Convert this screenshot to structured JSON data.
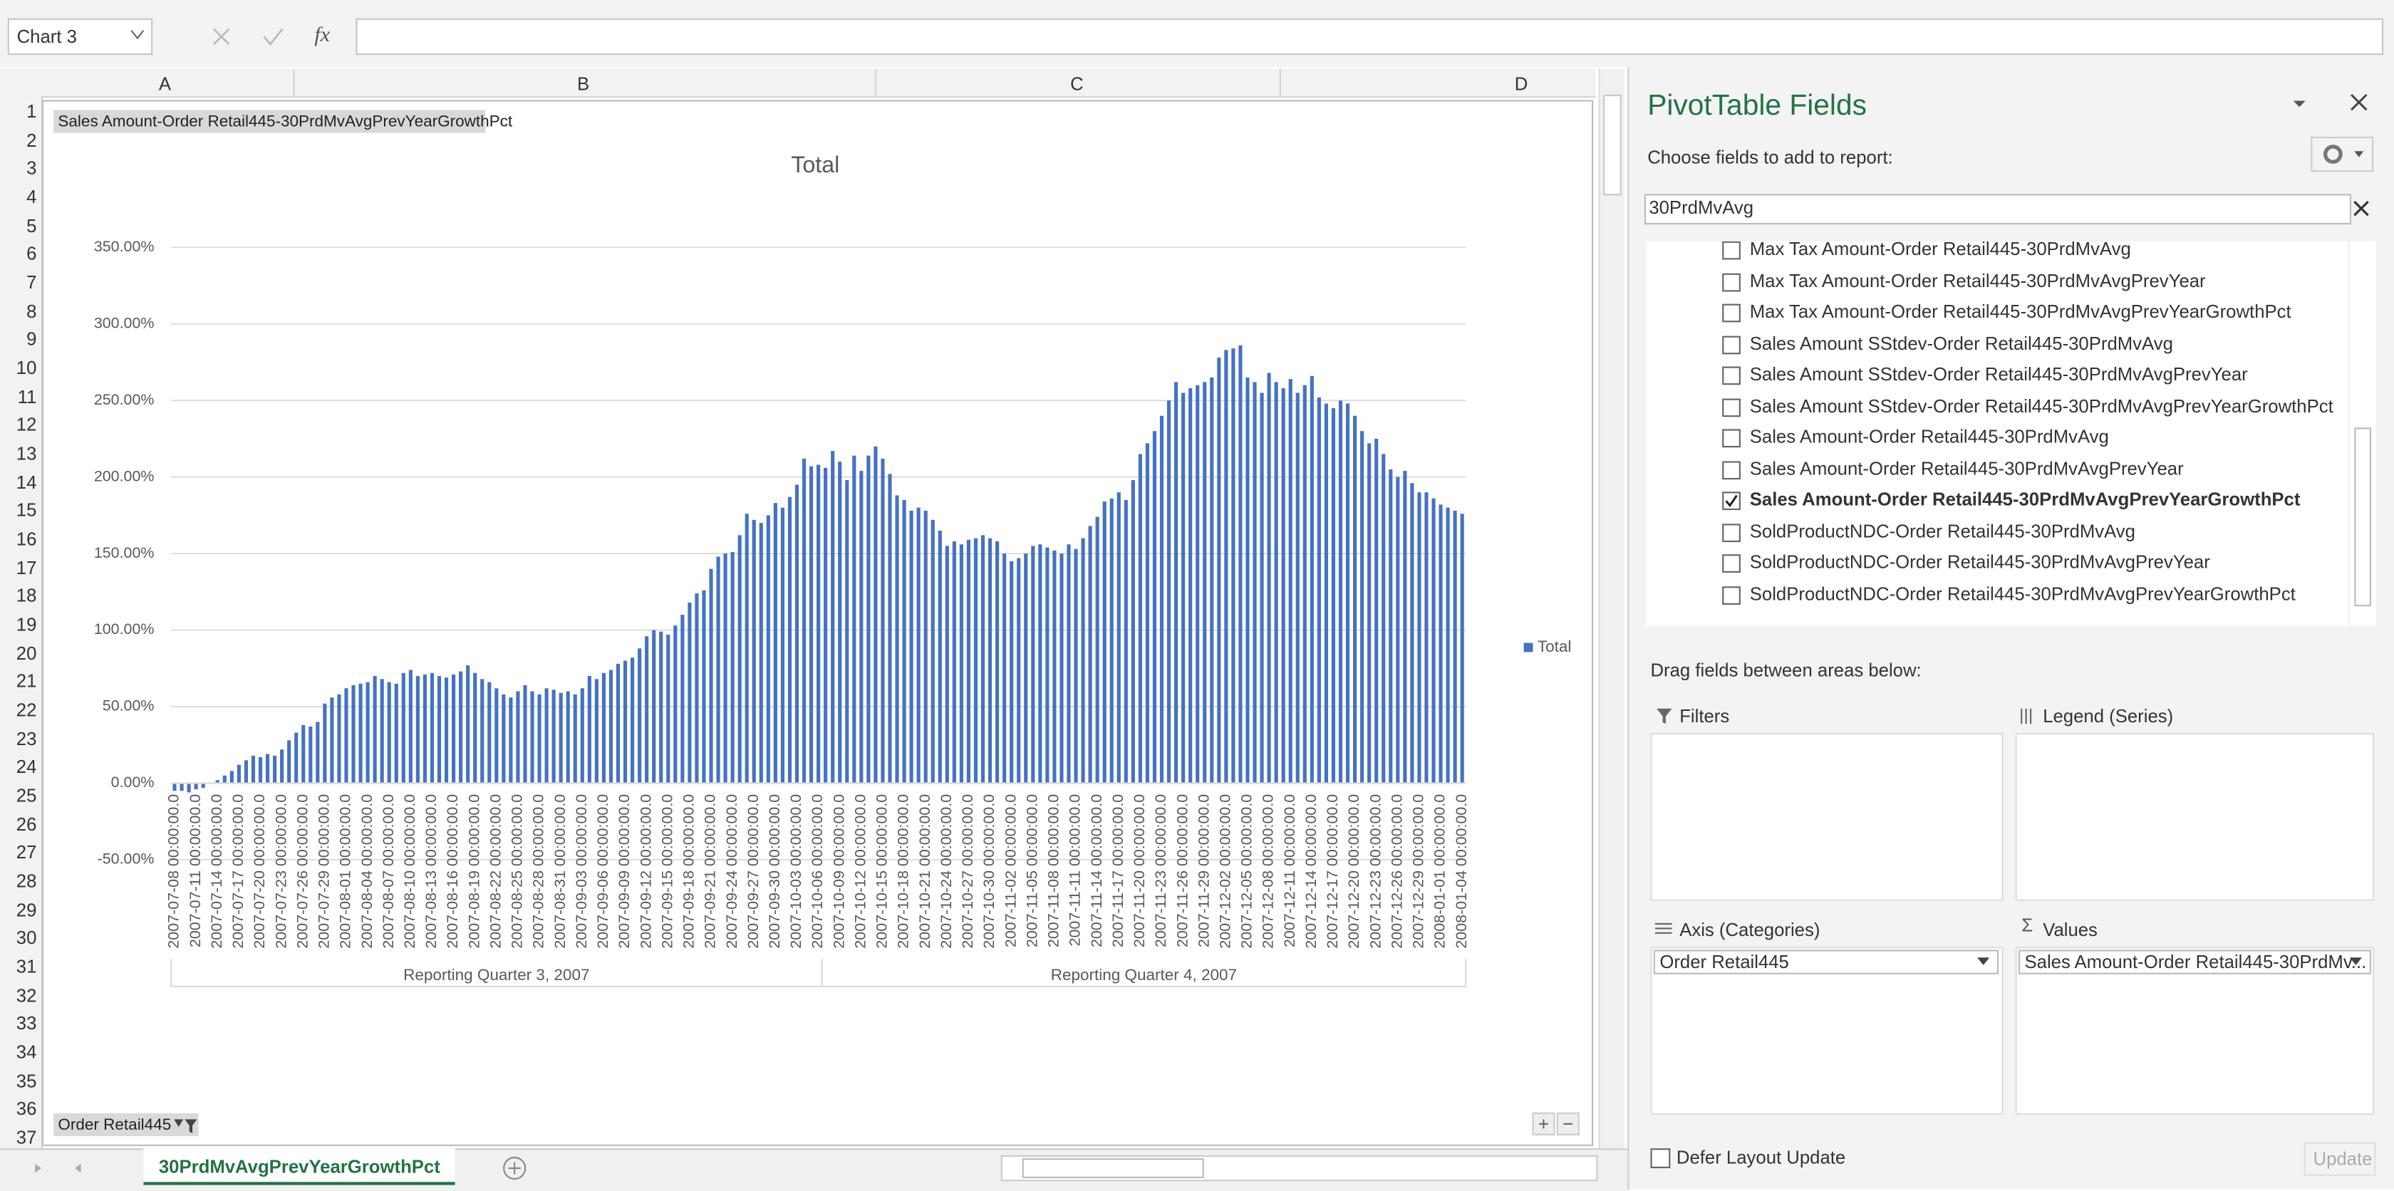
{
  "formula_bar": {
    "name_box": "Chart 3",
    "function_icon": "fx"
  },
  "columns": [
    "A",
    "B",
    "C",
    "D"
  ],
  "rows": [
    1,
    2,
    3,
    4,
    5,
    6,
    7,
    8,
    9,
    10,
    11,
    12,
    13,
    14,
    15,
    16,
    17,
    18,
    19,
    20,
    21,
    22,
    23,
    24,
    25,
    26,
    27,
    28,
    29,
    30,
    31,
    32,
    33,
    34,
    35,
    36,
    37
  ],
  "sheet_tab": "30PrdMvAvgPrevYearGrowthPct",
  "chart_data": {
    "type": "bar",
    "title": "Total",
    "value_field_button": "Sales Amount-Order Retail445-30PrdMvAvgPrevYearGrowthPct",
    "axis_field_button": "Order Retail445",
    "categories": [
      "2007-07-08 00:00:00.0",
      null,
      null,
      "2007-07-11 00:00:00.0",
      null,
      null,
      "2007-07-14 00:00:00.0",
      null,
      null,
      "2007-07-17 00:00:00.0",
      null,
      null,
      "2007-07-20 00:00:00.0",
      null,
      null,
      "2007-07-23 00:00:00.0",
      null,
      null,
      "2007-07-26 00:00:00.0",
      null,
      null,
      "2007-07-29 00:00:00.0",
      null,
      null,
      "2007-08-01 00:00:00.0",
      null,
      null,
      "2007-08-04 00:00:00.0",
      null,
      null,
      "2007-08-07 00:00:00.0",
      null,
      null,
      "2007-08-10 00:00:00.0",
      null,
      null,
      "2007-08-13 00:00:00.0",
      null,
      null,
      "2007-08-16 00:00:00.0",
      null,
      null,
      "2007-08-19 00:00:00.0",
      null,
      null,
      "2007-08-22 00:00:00.0",
      null,
      null,
      "2007-08-25 00:00:00.0",
      null,
      null,
      "2007-08-28 00:00:00.0",
      null,
      null,
      "2007-08-31 00:00:00.0",
      null,
      null,
      "2007-09-03 00:00:00.0",
      null,
      null,
      "2007-09-06 00:00:00.0",
      null,
      null,
      "2007-09-09 00:00:00.0",
      null,
      null,
      "2007-09-12 00:00:00.0",
      null,
      null,
      "2007-09-15 00:00:00.0",
      null,
      null,
      "2007-09-18 00:00:00.0",
      null,
      null,
      "2007-09-21 00:00:00.0",
      null,
      null,
      "2007-09-24 00:00:00.0",
      null,
      null,
      "2007-09-27 00:00:00.0",
      null,
      null,
      "2007-09-30 00:00:00.0",
      null,
      null,
      "2007-10-03 00:00:00.0",
      null,
      null,
      "2007-10-06 00:00:00.0",
      null,
      null,
      "2007-10-09 00:00:00.0",
      null,
      null,
      "2007-10-12 00:00:00.0",
      null,
      null,
      "2007-10-15 00:00:00.0",
      null,
      null,
      "2007-10-18 00:00:00.0",
      null,
      null,
      "2007-10-21 00:00:00.0",
      null,
      null,
      "2007-10-24 00:00:00.0",
      null,
      null,
      "2007-10-27 00:00:00.0",
      null,
      null,
      "2007-10-30 00:00:00.0",
      null,
      null,
      "2007-11-02 00:00:00.0",
      null,
      null,
      "2007-11-05 00:00:00.0",
      null,
      null,
      "2007-11-08 00:00:00.0",
      null,
      null,
      "2007-11-11 00:00:00.0",
      null,
      null,
      "2007-11-14 00:00:00.0",
      null,
      null,
      "2007-11-17 00:00:00.0",
      null,
      null,
      "2007-11-20 00:00:00.0",
      null,
      null,
      "2007-11-23 00:00:00.0",
      null,
      null,
      "2007-11-26 00:00:00.0",
      null,
      null,
      "2007-11-29 00:00:00.0",
      null,
      null,
      "2007-12-02 00:00:00.0",
      null,
      null,
      "2007-12-05 00:00:00.0",
      null,
      null,
      "2007-12-08 00:00:00.0",
      null,
      null,
      "2007-12-11 00:00:00.0",
      null,
      null,
      "2007-12-14 00:00:00.0",
      null,
      null,
      "2007-12-17 00:00:00.0",
      null,
      null,
      "2007-12-20 00:00:00.0",
      null,
      null,
      "2007-12-23 00:00:00.0",
      null,
      null,
      "2007-12-26 00:00:00.0",
      null,
      null,
      "2007-12-29 00:00:00.0",
      null,
      null,
      "2008-01-01 00:00:00.0",
      null,
      null,
      "2008-01-04 00:00:00.0"
    ],
    "category_groups": [
      {
        "name": "Reporting Quarter 3, 2007",
        "count": 91
      },
      {
        "name": "Reporting Quarter 4, 2007",
        "count": 90
      }
    ],
    "series": [
      {
        "name": "Total",
        "color": "#4472c4",
        "values": [
          -5,
          -5,
          -6,
          -4,
          -3,
          0,
          2,
          5,
          8,
          12,
          15,
          18,
          17,
          19,
          18,
          22,
          28,
          33,
          38,
          37,
          40,
          52,
          56,
          58,
          62,
          64,
          65,
          66,
          70,
          68,
          66,
          65,
          72,
          74,
          70,
          71,
          72,
          70,
          69,
          71,
          73,
          77,
          72,
          68,
          66,
          62,
          58,
          56,
          60,
          64,
          60,
          58,
          62,
          61,
          59,
          60,
          58,
          62,
          70,
          68,
          72,
          74,
          78,
          80,
          82,
          88,
          96,
          100,
          99,
          97,
          103,
          110,
          118,
          124,
          126,
          140,
          148,
          150,
          151,
          162,
          176,
          172,
          170,
          175,
          183,
          180,
          187,
          195,
          212,
          207,
          208,
          206,
          217,
          210,
          198,
          214,
          204,
          214,
          220,
          212,
          202,
          188,
          185,
          178,
          180,
          178,
          172,
          165,
          155,
          158,
          156,
          159,
          160,
          162,
          160,
          158,
          150,
          145,
          147,
          150,
          155,
          156,
          154,
          152,
          150,
          156,
          153,
          160,
          168,
          174,
          184,
          186,
          190,
          185,
          198,
          215,
          222,
          230,
          240,
          250,
          262,
          255,
          258,
          260,
          262,
          265,
          278,
          283,
          284,
          286,
          265,
          262,
          255,
          268,
          262,
          258,
          264,
          255,
          260,
          266,
          252,
          248,
          245,
          250,
          248,
          240,
          230,
          222,
          225,
          215,
          205,
          200,
          204,
          196,
          190,
          190,
          186,
          182,
          180,
          178,
          176
        ]
      }
    ],
    "ylim": [
      -50,
      350
    ],
    "yticks": [
      {
        "value": -50,
        "label": "-50.00%"
      },
      {
        "value": 0,
        "label": "0.00%"
      },
      {
        "value": 50,
        "label": "50.00%"
      },
      {
        "value": 100,
        "label": "100.00%"
      },
      {
        "value": 150,
        "label": "150.00%"
      },
      {
        "value": 200,
        "label": "200.00%"
      },
      {
        "value": 250,
        "label": "250.00%"
      },
      {
        "value": 300,
        "label": "300.00%"
      },
      {
        "value": 350,
        "label": "350.00%"
      }
    ],
    "grid": true,
    "legend": "right"
  },
  "pivot_panel": {
    "title": "PivotTable Fields",
    "prompt": "Choose fields to add to report:",
    "search": "30PrdMvAvg",
    "fields": [
      {
        "label": "Max Tax Amount-Order Retail445-30PrdMvAvg",
        "checked": false
      },
      {
        "label": "Max Tax Amount-Order Retail445-30PrdMvAvgPrevYear",
        "checked": false
      },
      {
        "label": "Max Tax Amount-Order Retail445-30PrdMvAvgPrevYearGrowthPct",
        "checked": false
      },
      {
        "label": "Sales Amount SStdev-Order Retail445-30PrdMvAvg",
        "checked": false
      },
      {
        "label": "Sales Amount SStdev-Order Retail445-30PrdMvAvgPrevYear",
        "checked": false
      },
      {
        "label": "Sales Amount SStdev-Order Retail445-30PrdMvAvgPrevYearGrowthPct",
        "checked": false
      },
      {
        "label": "Sales Amount-Order Retail445-30PrdMvAvg",
        "checked": false
      },
      {
        "label": "Sales Amount-Order Retail445-30PrdMvAvgPrevYear",
        "checked": false
      },
      {
        "label": "Sales Amount-Order Retail445-30PrdMvAvgPrevYearGrowthPct",
        "checked": true
      },
      {
        "label": "SoldProductNDC-Order Retail445-30PrdMvAvg",
        "checked": false
      },
      {
        "label": "SoldProductNDC-Order Retail445-30PrdMvAvgPrevYear",
        "checked": false
      },
      {
        "label": "SoldProductNDC-Order Retail445-30PrdMvAvgPrevYearGrowthPct",
        "checked": false
      }
    ],
    "drag_prompt": "Drag fields between areas below:",
    "areas": {
      "filters": {
        "title": "Filters"
      },
      "legend": {
        "title": "Legend (Series)"
      },
      "axis": {
        "title": "Axis (Categories)",
        "items": [
          "Order Retail445"
        ]
      },
      "values": {
        "title": "Values",
        "items": [
          "Sales Amount-Order Retail445-30PrdMv..."
        ]
      }
    },
    "defer_label": "Defer Layout Update",
    "update_button": "Update"
  }
}
